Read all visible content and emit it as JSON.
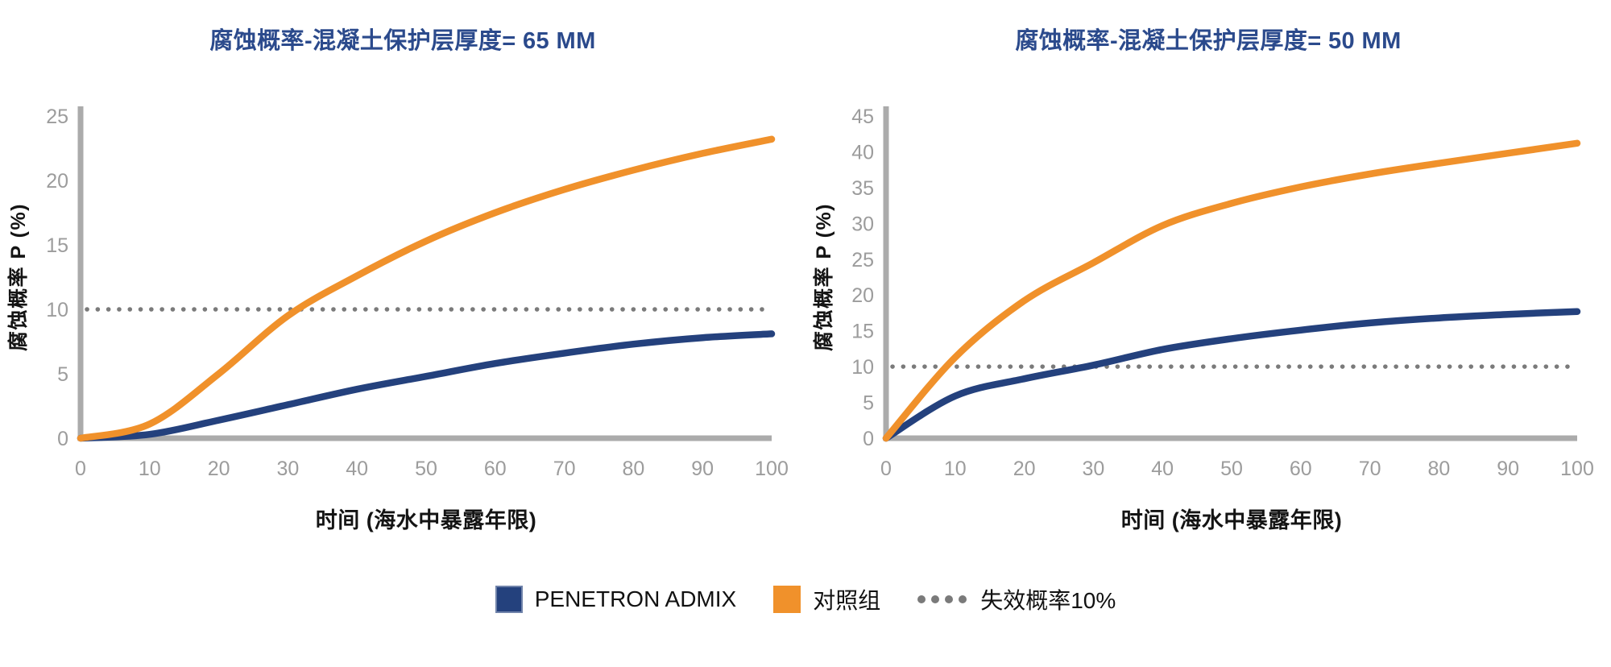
{
  "page": {
    "background": "#FFFFFF"
  },
  "colors": {
    "title": "#2B4A8C",
    "penetron": "#24417D",
    "control": "#F0912B",
    "axis": "#ABABAB",
    "tick_label": "#9C9C9C",
    "threshold": "#7A7A7A",
    "axis_title": "#141414"
  },
  "legend": {
    "items": [
      {
        "swatch": "square",
        "color": "#24417D",
        "label": "PENETRON ADMIX"
      },
      {
        "swatch": "square",
        "color": "#F0912B",
        "label": "对照组"
      },
      {
        "swatch": "dots",
        "color": "#7A7A7A",
        "label": "失效概率10%"
      }
    ]
  },
  "chart_data": [
    {
      "type": "line",
      "title": "腐蚀概率-混凝土保护层厚度= 65 MM",
      "xlabel": "时间 (海水中暴露年限)",
      "ylabel": "腐蚀概率 P (%)",
      "x": [
        0,
        10,
        20,
        30,
        40,
        50,
        60,
        70,
        80,
        90,
        100
      ],
      "xlim": [
        0,
        100
      ],
      "ylim": [
        0,
        25
      ],
      "ytick_step": 5,
      "grid": false,
      "legend_position": "bottom-shared",
      "threshold_line": {
        "value": 10,
        "style": "dotted",
        "label": "失效概率10%"
      },
      "series": [
        {
          "name": "PENETRON ADMIX",
          "color": "#24417D",
          "values": [
            0,
            0.3,
            1.4,
            2.6,
            3.8,
            4.8,
            5.8,
            6.6,
            7.3,
            7.8,
            8.1
          ]
        },
        {
          "name": "对照组",
          "color": "#F0912B",
          "values": [
            0,
            1.1,
            5.0,
            9.5,
            12.6,
            15.3,
            17.5,
            19.3,
            20.8,
            22.1,
            23.2
          ]
        }
      ]
    },
    {
      "type": "line",
      "title": "腐蚀概率-混凝土保护层厚度= 50 MM",
      "xlabel": "时间 (海水中暴露年限)",
      "ylabel": "腐蚀概率 P (%)",
      "x": [
        0,
        10,
        20,
        30,
        40,
        50,
        60,
        70,
        80,
        90,
        100
      ],
      "xlim": [
        0,
        100
      ],
      "ylim": [
        0,
        45
      ],
      "ytick_step": 5,
      "grid": false,
      "legend_position": "bottom-shared",
      "threshold_line": {
        "value": 10,
        "style": "dotted",
        "label": "失效概率10%"
      },
      "series": [
        {
          "name": "PENETRON ADMIX",
          "color": "#24417D",
          "values": [
            0,
            5.9,
            8.3,
            10.2,
            12.4,
            13.9,
            15.1,
            16.1,
            16.8,
            17.3,
            17.7
          ]
        },
        {
          "name": "对照组",
          "color": "#F0912B",
          "values": [
            0,
            11.3,
            19.2,
            24.5,
            29.7,
            32.8,
            35.1,
            36.9,
            38.4,
            39.8,
            41.2
          ]
        }
      ]
    }
  ]
}
